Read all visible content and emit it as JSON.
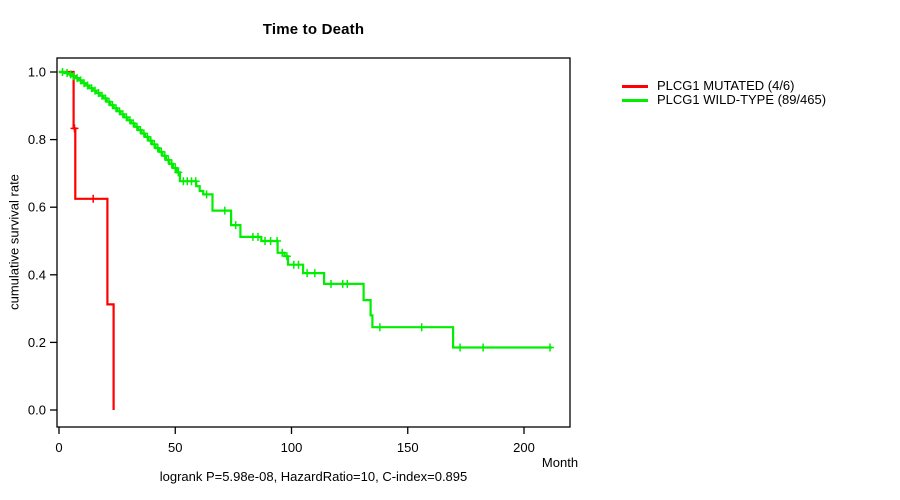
{
  "chart_data": {
    "type": "line",
    "subtype": "kaplan-meier-step",
    "title": "Time to Death",
    "xlabel": "Month",
    "ylabel": "cumulative survival rate",
    "footer": "logrank P=5.98e-08, HazardRatio=10, C-index=0.895",
    "xlim": [
      0,
      220
    ],
    "ylim": [
      0.0,
      1.0
    ],
    "xticks": [
      0,
      50,
      100,
      150,
      200
    ],
    "yticks": [
      "0.0",
      "0.2",
      "0.4",
      "0.6",
      "0.8",
      "1.0"
    ],
    "grid": false,
    "legend_position": "right-outside",
    "axis_color": "#000000",
    "series": [
      {
        "name": "PLCG1 MUTATED (4/6)",
        "color": "#ff0000",
        "steps": [
          [
            0,
            1.0
          ],
          [
            6.3,
            1.0
          ],
          [
            6.3,
            0.833
          ],
          [
            7,
            0.833
          ],
          [
            7,
            0.625
          ],
          [
            20.8,
            0.625
          ],
          [
            20.8,
            0.3125
          ],
          [
            23.5,
            0.3125
          ],
          [
            23.5,
            0.0
          ]
        ],
        "censor_times": [
          6.65,
          14.7
        ]
      },
      {
        "name": "PLCG1 WILD-TYPE (89/465)",
        "color": "#00ee00",
        "steps": [
          [
            0,
            1.0
          ],
          [
            2.5,
            1.0
          ],
          [
            2.5,
            0.997
          ],
          [
            4,
            0.997
          ],
          [
            4,
            0.993
          ],
          [
            5.5,
            0.993
          ],
          [
            5.5,
            0.988
          ],
          [
            7,
            0.988
          ],
          [
            7,
            0.982
          ],
          [
            8.5,
            0.982
          ],
          [
            8.5,
            0.975
          ],
          [
            10,
            0.975
          ],
          [
            10,
            0.967
          ],
          [
            11.5,
            0.967
          ],
          [
            11.5,
            0.96
          ],
          [
            13,
            0.96
          ],
          [
            13,
            0.952
          ],
          [
            14.5,
            0.952
          ],
          [
            14.5,
            0.945
          ],
          [
            16,
            0.945
          ],
          [
            16,
            0.938
          ],
          [
            17.5,
            0.938
          ],
          [
            17.5,
            0.93
          ],
          [
            19,
            0.93
          ],
          [
            19,
            0.922
          ],
          [
            20.5,
            0.922
          ],
          [
            20.5,
            0.912
          ],
          [
            22,
            0.912
          ],
          [
            22,
            0.902
          ],
          [
            23.5,
            0.902
          ],
          [
            23.5,
            0.893
          ],
          [
            25,
            0.893
          ],
          [
            25,
            0.884
          ],
          [
            26.5,
            0.884
          ],
          [
            26.5,
            0.875
          ],
          [
            28,
            0.875
          ],
          [
            28,
            0.866
          ],
          [
            29.5,
            0.866
          ],
          [
            29.5,
            0.857
          ],
          [
            31,
            0.857
          ],
          [
            31,
            0.848
          ],
          [
            32.5,
            0.848
          ],
          [
            32.5,
            0.838
          ],
          [
            34,
            0.838
          ],
          [
            34,
            0.828
          ],
          [
            35.5,
            0.828
          ],
          [
            35.5,
            0.818
          ],
          [
            37,
            0.818
          ],
          [
            37,
            0.808
          ],
          [
            38.5,
            0.808
          ],
          [
            38.5,
            0.797
          ],
          [
            40,
            0.797
          ],
          [
            40,
            0.786
          ],
          [
            41.5,
            0.786
          ],
          [
            41.5,
            0.775
          ],
          [
            43,
            0.775
          ],
          [
            43,
            0.764
          ],
          [
            44.5,
            0.764
          ],
          [
            44.5,
            0.752
          ],
          [
            46,
            0.752
          ],
          [
            46,
            0.74
          ],
          [
            47.5,
            0.74
          ],
          [
            47.5,
            0.728
          ],
          [
            49,
            0.728
          ],
          [
            49,
            0.716
          ],
          [
            50.5,
            0.716
          ],
          [
            50.5,
            0.703
          ],
          [
            52,
            0.703
          ],
          [
            52,
            0.677
          ],
          [
            59,
            0.677
          ],
          [
            59,
            0.662
          ],
          [
            60.5,
            0.662
          ],
          [
            60.5,
            0.648
          ],
          [
            62,
            0.648
          ],
          [
            62,
            0.638
          ],
          [
            66,
            0.638
          ],
          [
            66,
            0.59
          ],
          [
            74,
            0.59
          ],
          [
            74,
            0.547
          ],
          [
            78,
            0.547
          ],
          [
            78,
            0.512
          ],
          [
            87,
            0.512
          ],
          [
            87,
            0.5
          ],
          [
            94,
            0.5
          ],
          [
            94,
            0.465
          ],
          [
            97,
            0.465
          ],
          [
            97,
            0.455
          ],
          [
            98.5,
            0.455
          ],
          [
            98.5,
            0.43
          ],
          [
            105,
            0.43
          ],
          [
            105,
            0.405
          ],
          [
            114,
            0.405
          ],
          [
            114,
            0.373
          ],
          [
            131,
            0.373
          ],
          [
            131,
            0.325
          ],
          [
            134,
            0.325
          ],
          [
            134,
            0.28
          ],
          [
            134.8,
            0.28
          ],
          [
            134.8,
            0.245
          ],
          [
            169.5,
            0.245
          ],
          [
            169.5,
            0.185
          ],
          [
            212,
            0.185
          ]
        ],
        "censor_times": [
          1.5,
          3.5,
          5,
          6.2,
          7.8,
          9.3,
          10.8,
          12.3,
          14,
          15.5,
          17,
          18.5,
          20,
          21.5,
          23,
          24.5,
          26,
          27.5,
          29,
          30.5,
          32,
          33.5,
          35,
          36.5,
          38,
          39.5,
          41,
          42.5,
          44,
          45.5,
          47,
          48.5,
          50,
          51.3,
          53.5,
          55.2,
          57,
          58.8,
          63.5,
          71.3,
          76,
          83.4,
          85.6,
          88.6,
          91,
          93.8,
          96,
          98,
          101,
          103,
          106.7,
          110,
          117,
          122,
          124,
          138,
          156,
          172.5,
          182.4,
          211.2
        ]
      }
    ]
  }
}
